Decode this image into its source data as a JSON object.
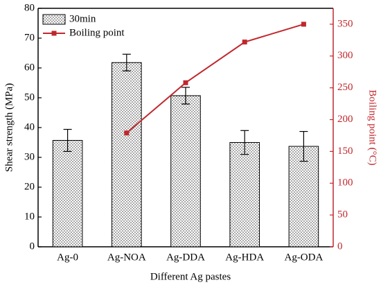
{
  "chart_data": {
    "type": "bar_line",
    "xlabel": "Different Ag pastes",
    "ylabel": "Shear strength (MPa)",
    "y2label": "Boiling point (°C)",
    "categories": [
      "Ag-0",
      "Ag-NOA",
      "Ag-DDA",
      "Ag-HDA",
      "Ag-ODA"
    ],
    "series": [
      {
        "name": "30min",
        "color": "#000000",
        "values": [
          35.7,
          61.8,
          50.7,
          35.0,
          33.7
        ],
        "errors": [
          3.7,
          2.8,
          2.8,
          4.0,
          5.0
        ]
      },
      {
        "name": "Boiling point",
        "color": "#c0272d",
        "axis": "y2",
        "values": [
          null,
          179,
          258,
          322,
          350
        ]
      }
    ],
    "ylim": [
      0,
      80
    ],
    "yticks": [
      0,
      10,
      20,
      30,
      40,
      50,
      60,
      70,
      80
    ],
    "y2lim": [
      0,
      375
    ],
    "y2ticks": [
      0,
      50,
      100,
      150,
      200,
      250,
      300,
      350
    ],
    "legend": "upper left"
  }
}
